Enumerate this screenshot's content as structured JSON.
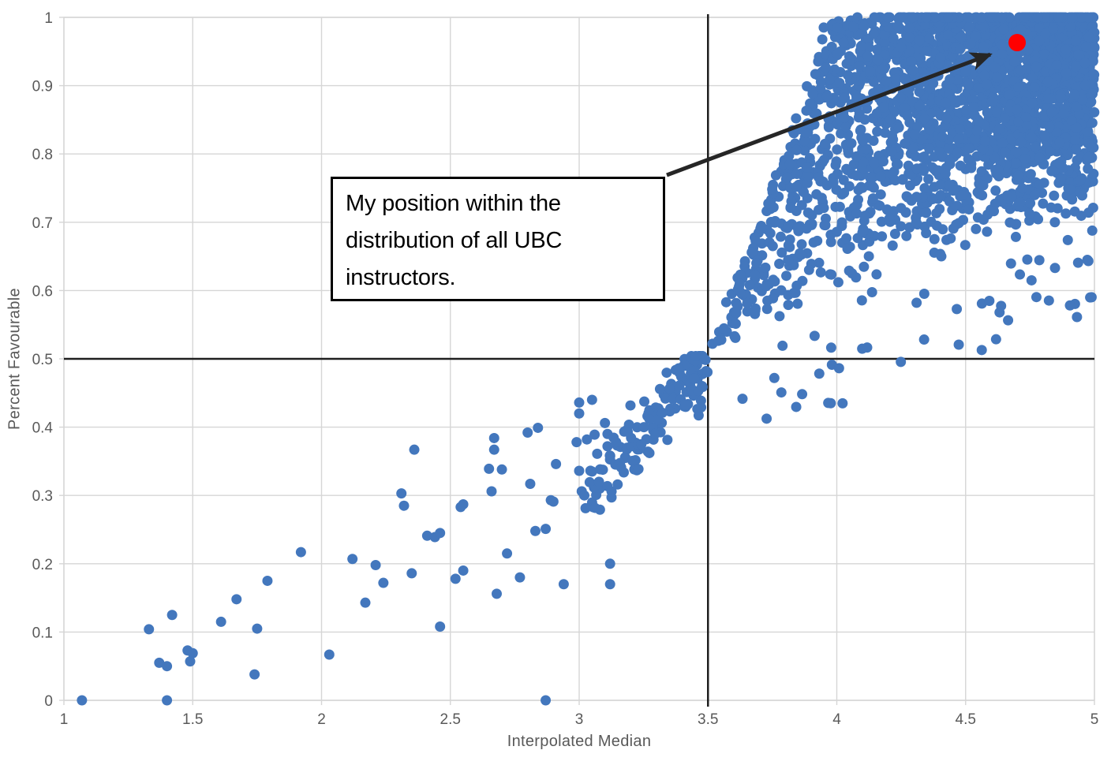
{
  "chart_data": {
    "type": "scatter",
    "title": "",
    "xlabel": "Interpolated Median",
    "ylabel": "Percent Favourable",
    "xlim": [
      1,
      5
    ],
    "ylim": [
      0,
      1
    ],
    "grid": true,
    "legend": "none",
    "xticks": {
      "values": [
        1,
        1.5,
        2,
        2.5,
        3,
        3.5,
        4,
        4.5,
        5
      ],
      "labels": [
        "1",
        "1.5",
        "2",
        "2.5",
        "3",
        "3.5",
        "4",
        "4.5",
        "5"
      ]
    },
    "yticks": {
      "values": [
        0,
        0.1,
        0.2,
        0.3,
        0.4,
        0.5,
        0.6,
        0.7,
        0.8,
        0.9,
        1
      ],
      "labels": [
        "0",
        "0.1",
        "0.2",
        "0.3",
        "0.4",
        "0.5",
        "0.6",
        "0.7",
        "0.8",
        "0.9",
        "1"
      ]
    },
    "reference_lines": {
      "vertical_x": 3.5,
      "horizontal_y": 0.5
    },
    "highlight_point": {
      "x": 4.7,
      "y": 0.963
    },
    "annotation": {
      "lines": [
        "My position within the",
        "distribution of all UBC",
        "instructors."
      ],
      "arrow_points_to": "highlight_point"
    },
    "colors": {
      "points": "#4377BD",
      "highlight": "#FF0000",
      "grid": "#D6D6D6",
      "axis_text": "#595959",
      "crosshair": "#1F1F1F",
      "arrow": "#262626",
      "annotation_border": "#000000",
      "background": "#FFFFFF"
    },
    "sparse_points": [
      [
        1.07,
        0.0
      ],
      [
        1.4,
        0.0
      ],
      [
        2.87,
        0.0
      ],
      [
        1.33,
        0.104
      ],
      [
        1.42,
        0.125
      ],
      [
        1.37,
        0.055
      ],
      [
        1.4,
        0.05
      ],
      [
        1.48,
        0.073
      ],
      [
        1.49,
        0.057
      ],
      [
        1.5,
        0.069
      ],
      [
        1.61,
        0.115
      ],
      [
        1.67,
        0.148
      ],
      [
        1.74,
        0.038
      ],
      [
        1.79,
        0.175
      ],
      [
        1.75,
        0.105
      ],
      [
        1.92,
        0.217
      ],
      [
        2.03,
        0.067
      ],
      [
        2.12,
        0.207
      ],
      [
        2.21,
        0.198
      ],
      [
        2.17,
        0.143
      ],
      [
        2.24,
        0.172
      ],
      [
        2.31,
        0.303
      ],
      [
        2.32,
        0.285
      ],
      [
        2.35,
        0.186
      ],
      [
        2.36,
        0.367
      ],
      [
        2.41,
        0.241
      ],
      [
        2.44,
        0.239
      ],
      [
        2.46,
        0.108
      ],
      [
        2.46,
        0.245
      ],
      [
        2.52,
        0.178
      ],
      [
        2.54,
        0.283
      ],
      [
        2.55,
        0.19
      ],
      [
        2.55,
        0.287
      ],
      [
        2.65,
        0.339
      ],
      [
        2.66,
        0.306
      ],
      [
        2.67,
        0.384
      ],
      [
        2.67,
        0.367
      ],
      [
        2.68,
        0.156
      ],
      [
        2.7,
        0.338
      ],
      [
        2.72,
        0.215
      ],
      [
        2.77,
        0.18
      ],
      [
        2.8,
        0.392
      ],
      [
        2.81,
        0.317
      ],
      [
        2.83,
        0.248
      ],
      [
        2.84,
        0.399
      ],
      [
        2.87,
        0.251
      ],
      [
        2.89,
        0.293
      ],
      [
        2.9,
        0.291
      ],
      [
        2.91,
        0.346
      ],
      [
        2.94,
        0.17
      ],
      [
        2.99,
        0.378
      ],
      [
        3.0,
        0.436
      ],
      [
        3.0,
        0.42
      ],
      [
        3.0,
        0.336
      ],
      [
        3.01,
        0.306
      ],
      [
        3.02,
        0.3
      ],
      [
        3.03,
        0.382
      ],
      [
        3.05,
        0.335
      ],
      [
        3.05,
        0.44
      ],
      [
        3.06,
        0.389
      ],
      [
        3.07,
        0.361
      ],
      [
        3.08,
        0.31
      ],
      [
        3.1,
        0.406
      ],
      [
        3.11,
        0.39
      ],
      [
        3.11,
        0.372
      ],
      [
        3.12,
        0.2
      ],
      [
        3.12,
        0.17
      ],
      [
        3.15,
        0.345
      ],
      [
        3.16,
        0.371
      ],
      [
        3.18,
        0.355
      ]
    ],
    "dense_cloud": {
      "note": "procedural approximation of ~2700 overlapping instructor points",
      "seed": 1337,
      "fan": {
        "count": 2400,
        "x_range": [
          3.5,
          5.0
        ],
        "x_skew": 0.5,
        "upper_slope": 1.05,
        "lower_slope": 0.14,
        "w_skew": 0.5,
        "jitter": 0.02
      },
      "top_row": {
        "count": 90,
        "x_range": [
          4.05,
          5.0
        ],
        "x_skew": 0.6,
        "y": 1.0
      },
      "approach_band": {
        "count": 140,
        "x_range": [
          2.98,
          3.5
        ],
        "x_skew": 0.55,
        "slope": 0.44,
        "jitter": 0.05
      },
      "below_outliers": {
        "count": 48,
        "x_range": [
          3.62,
          5.0
        ],
        "x_skew": 0.7,
        "drop_range": [
          0.02,
          0.14
        ]
      }
    }
  }
}
